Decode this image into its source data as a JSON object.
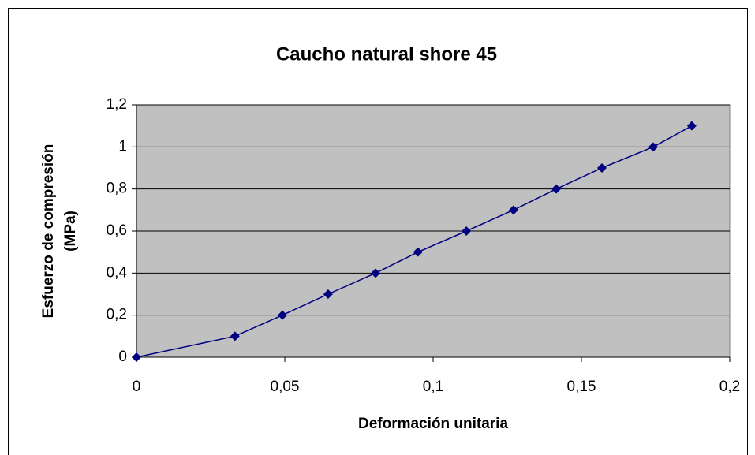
{
  "chart_data": {
    "type": "line",
    "title": "Caucho natural shore 45",
    "xlabel": "Deformación unitaria",
    "ylabel": [
      "Esfuerzo de compresión",
      "(MPa)"
    ],
    "x": [
      0,
      0.0332,
      0.0492,
      0.0646,
      0.0806,
      0.0949,
      0.1112,
      0.1271,
      0.1415,
      0.1569,
      0.1742,
      0.1872
    ],
    "series": [
      {
        "name": "Caucho natural shore 45",
        "color": "#000080",
        "values": [
          0,
          0.1,
          0.2,
          0.3,
          0.4,
          0.5,
          0.6,
          0.7,
          0.8,
          0.9,
          1,
          1.1
        ]
      }
    ],
    "xlim": [
      0,
      0.2
    ],
    "xticks": [
      0,
      {
        "value": 0.05,
        "label": "0,05"
      },
      {
        "value": 0.1,
        "label": "0,1"
      },
      {
        "value": 0.15,
        "label": "0,15"
      },
      {
        "value": 0.2,
        "label": "0,2"
      }
    ],
    "ylim": [
      0,
      1.2
    ],
    "yticks": [
      0,
      {
        "value": 0.2,
        "label": "0,2"
      },
      {
        "value": 0.4,
        "label": "0,4"
      },
      {
        "value": 0.6,
        "label": "0,6"
      },
      {
        "value": 0.8,
        "label": "0,8"
      },
      1,
      {
        "value": 1.2,
        "label": "1,2"
      }
    ],
    "grid": true,
    "plot_background": "#c0c0c0"
  }
}
